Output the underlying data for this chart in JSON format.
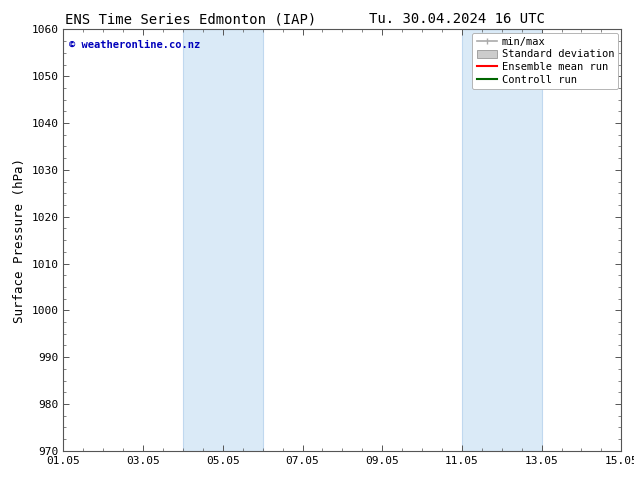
{
  "title_left": "ENS Time Series Edmonton (IAP)",
  "title_right": "Tu. 30.04.2024 16 UTC",
  "ylabel": "Surface Pressure (hPa)",
  "ylim": [
    970,
    1060
  ],
  "yticks": [
    970,
    980,
    990,
    1000,
    1010,
    1020,
    1030,
    1040,
    1050,
    1060
  ],
  "xlim_start": 0,
  "xlim_end": 14,
  "xtick_positions": [
    0,
    2,
    4,
    6,
    8,
    10,
    12,
    14
  ],
  "xtick_labels": [
    "01.05",
    "03.05",
    "05.05",
    "07.05",
    "09.05",
    "11.05",
    "13.05",
    "15.05"
  ],
  "shaded_regions": [
    {
      "xmin": 3.0,
      "xmax": 5.0
    },
    {
      "xmin": 10.0,
      "xmax": 12.0
    }
  ],
  "shaded_color": "#daeaf7",
  "shaded_edge_color": "#c0d8ef",
  "watermark_text": "© weatheronline.co.nz",
  "watermark_color": "#0000bb",
  "legend_entries": [
    {
      "label": "min/max",
      "color": "#aaaaaa",
      "style": "minmax"
    },
    {
      "label": "Standard deviation",
      "color": "#cccccc",
      "style": "stddev"
    },
    {
      "label": "Ensemble mean run",
      "color": "#ff0000",
      "style": "line"
    },
    {
      "label": "Controll run",
      "color": "#006600",
      "style": "line"
    }
  ],
  "background_color": "#ffffff",
  "plot_bg_color": "#ffffff",
  "axis_color": "#555555",
  "title_fontsize": 10,
  "tick_fontsize": 8,
  "label_fontsize": 9,
  "legend_fontsize": 7.5
}
